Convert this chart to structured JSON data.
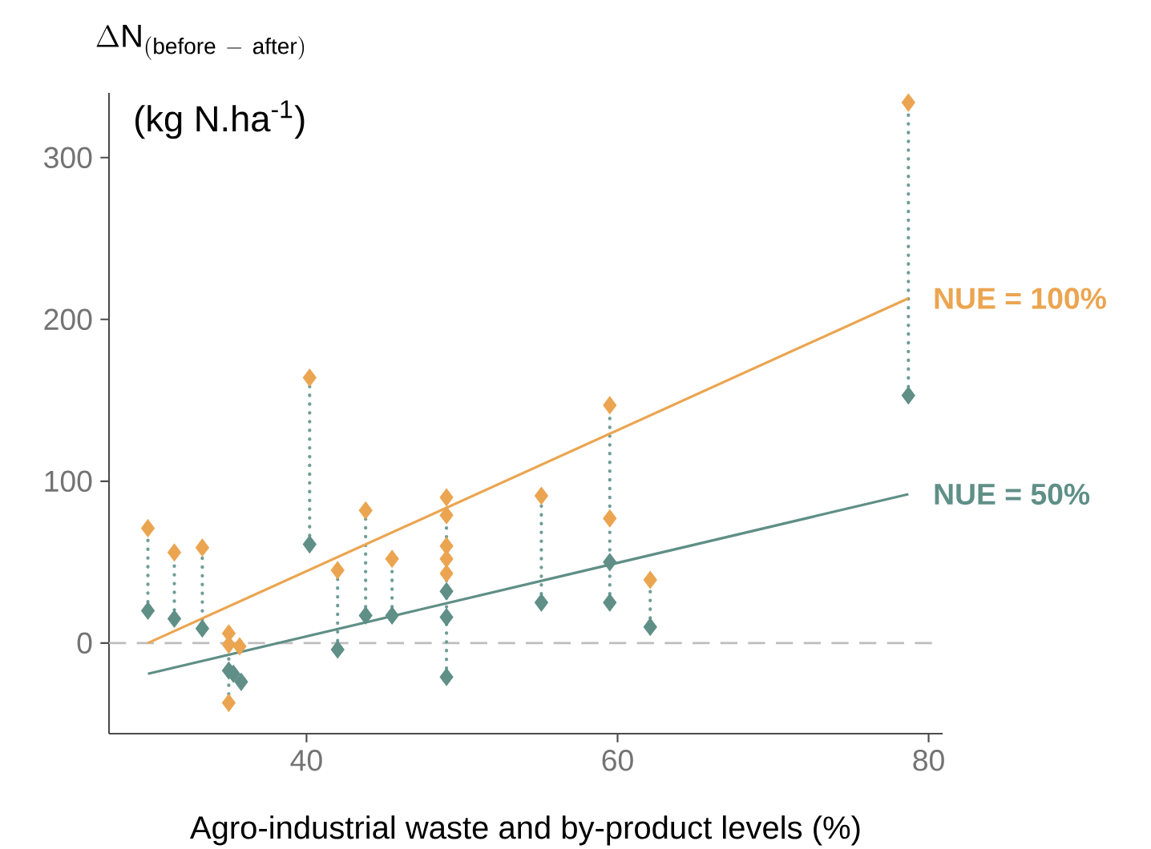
{
  "chart_data": {
    "type": "scatter",
    "ylabel": "\\Delta\\mathrm{N}_{\\mathrm{(before\\ -\\ after)}}",
    "xlabel": "Agro-industrial waste and by-product levels (%)",
    "annotations": [
      "(kg N.ha$^{-1}$)"
    ],
    "xlim": [
      27.3,
      80.9
    ],
    "ylim": [
      -56,
      340
    ],
    "xticks": [
      40,
      60,
      80
    ],
    "yticks": [
      0,
      100,
      200,
      300
    ],
    "marker": "diamond",
    "ref_lines": [
      {
        "axis": "y",
        "value": 0,
        "color": "#bdbdbd",
        "line_style": "dashed"
      }
    ],
    "series": [
      {
        "type": "line",
        "line_style": "dotted",
        "marker": "none",
        "color": "#6f9e97",
        "x": [
          29.8,
          29.8,
          null,
          31.5,
          31.5,
          null,
          33.3,
          33.3,
          null,
          35.0,
          35.0,
          null,
          40.2,
          40.2,
          null,
          42,
          42,
          null,
          43.8,
          43.8,
          null,
          45.5,
          45.5,
          null,
          49,
          49,
          null,
          55.1,
          55.1,
          null,
          59.5,
          59.5,
          null,
          62.1,
          62.1,
          null,
          78.7,
          78.7
        ],
        "values": [
          20,
          71,
          null,
          15,
          56,
          null,
          9,
          59,
          null,
          -37,
          6,
          null,
          61,
          164,
          null,
          -4,
          45,
          null,
          17,
          82,
          null,
          17,
          52,
          null,
          -21,
          90,
          null,
          25,
          91,
          null,
          25,
          147,
          null,
          10,
          39,
          null,
          153,
          334
        ]
      },
      {
        "color": "#eba550",
        "x": [
          29.8,
          31.5,
          33.3,
          35.0,
          35.0,
          35.7,
          35.0,
          40.2,
          42,
          43.8,
          45.5,
          49,
          49,
          49,
          49,
          49,
          55.1,
          59.5,
          59.5,
          62.1,
          78.7
        ],
        "values": [
          71,
          56,
          59,
          6,
          -1,
          -2,
          -37,
          164,
          45,
          82,
          52,
          90,
          79,
          60,
          52,
          43,
          91,
          147,
          77,
          39,
          334
        ]
      },
      {
        "color": "#5f8f87",
        "x": [
          29.8,
          31.5,
          33.3,
          35.0,
          35.3,
          35.8,
          40.2,
          42,
          43.8,
          45.5,
          49,
          49,
          49,
          55.1,
          59.5,
          59.5,
          62.1,
          78.7
        ],
        "values": [
          20,
          15,
          9,
          -17,
          -19,
          -24,
          61,
          -4,
          17,
          17,
          32,
          16,
          -21,
          25,
          50,
          25,
          10,
          153
        ]
      },
      {
        "type": "line",
        "name": "NUE = 100%",
        "color": "#eba550",
        "marker": "none",
        "x": [
          29.8,
          78.7
        ],
        "values": [
          0,
          213
        ]
      },
      {
        "type": "line",
        "name": "NUE = 50%",
        "color": "#5f8f87",
        "marker": "none",
        "x": [
          29.8,
          78.7
        ],
        "values": [
          -19,
          92
        ]
      }
    ]
  }
}
